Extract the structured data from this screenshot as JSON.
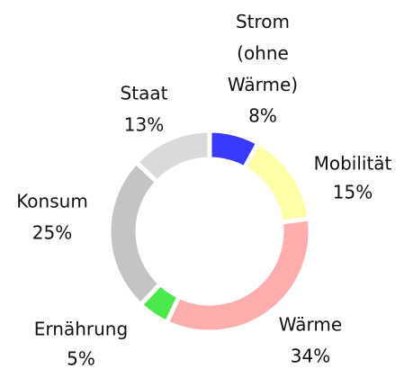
{
  "chart_data": {
    "type": "donut",
    "categories": [
      "Strom (ohne Wärme)",
      "Mobilität",
      "Wärme",
      "Ernährung",
      "Konsum",
      "Staat"
    ],
    "values": [
      8,
      15,
      34,
      5,
      25,
      13
    ],
    "value_labels": [
      "8%",
      "15%",
      "34%",
      "5%",
      "25%",
      "13%"
    ],
    "colors": [
      "#3a3aff",
      "#ffffa6",
      "#ffadad",
      "#4ae84a",
      "#c4c4c4",
      "#dadada"
    ]
  }
}
